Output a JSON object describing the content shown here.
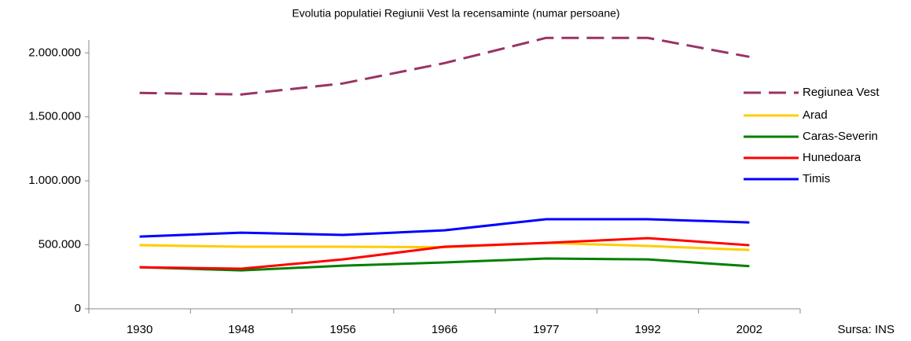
{
  "chart_data": {
    "type": "line",
    "title": "Evolutia populatiei Regiunii Vest la recensaminte (numar persoane)",
    "source": "Sursa: INS",
    "categories": [
      "1930",
      "1948",
      "1956",
      "1966",
      "1977",
      "1992",
      "2002"
    ],
    "series": [
      {
        "name": "Regiunea Vest",
        "color": "#993366",
        "line_style": "dashed",
        "values": [
          1687000,
          1675000,
          1761000,
          1920000,
          2117000,
          2117000,
          1969000
        ]
      },
      {
        "name": "Arad",
        "color": "#ffcc00",
        "line_style": "solid",
        "values": [
          497000,
          485000,
          485000,
          481000,
          515000,
          491000,
          460000
        ]
      },
      {
        "name": "Caras-Severin",
        "color": "#008000",
        "line_style": "solid",
        "values": [
          325000,
          300000,
          337000,
          362000,
          393000,
          386000,
          333000
        ]
      },
      {
        "name": "Hunedoara",
        "color": "#ff0000",
        "line_style": "solid",
        "values": [
          325000,
          313000,
          386000,
          485000,
          515000,
          552000,
          497000
        ]
      },
      {
        "name": "Timis",
        "color": "#0000ff",
        "line_style": "solid",
        "values": [
          564000,
          595000,
          577000,
          613000,
          700000,
          700000,
          675000
        ]
      }
    ],
    "ylim": [
      0,
      2100000
    ],
    "yticks": [
      0,
      {
        "value": 500000,
        "label": "500.000"
      },
      {
        "value": 1000000,
        "label": "1.000.000"
      },
      {
        "value": 1500000,
        "label": "1.500.000"
      },
      {
        "value": 2000000,
        "label": "2.000.000"
      }
    ],
    "grid": false,
    "legend": "right"
  }
}
